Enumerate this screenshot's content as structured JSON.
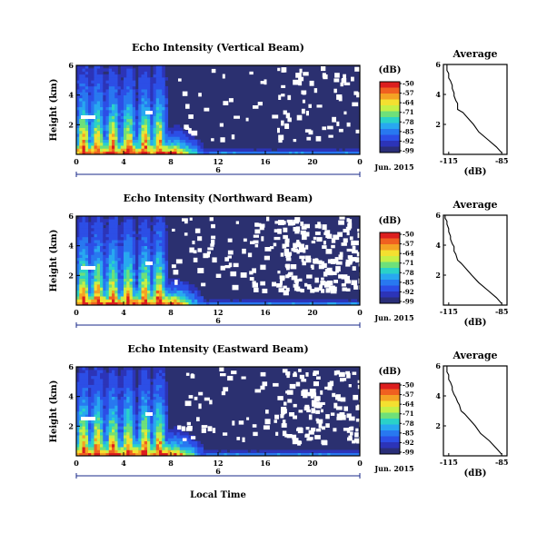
{
  "figure": {
    "xlabel": "Local Time",
    "date_label": "Jun. 2015",
    "day_label": "6",
    "colorbar_unit": "(dB)",
    "colorbar_ticks": [
      "-50",
      "-57",
      "-64",
      "-71",
      "-78",
      "-85",
      "-92",
      "-99"
    ],
    "colorbar_colors": [
      "#dc1e1e",
      "#f06020",
      "#f4a224",
      "#f4e030",
      "#c6f046",
      "#6ee07a",
      "#2ad2c8",
      "#28a8f0",
      "#2878f0",
      "#2c4ee6",
      "#2c34b8",
      "#2a2e78"
    ],
    "background_color": "#2b3070"
  },
  "chart_data": [
    {
      "type": "heatmap",
      "title": "Echo Intensity (Vertical Beam)",
      "ylabel": "Height (km)",
      "x_ticks": [
        "0",
        "4",
        "8",
        "12",
        "16",
        "20",
        "0"
      ],
      "xlim": [
        0,
        24
      ],
      "y_ticks": [
        "2",
        "4",
        "6"
      ],
      "ylim": [
        0,
        6
      ],
      "zlim": [
        -99,
        -50
      ],
      "zunit": "dB",
      "gap_density": 0.35,
      "profile": {
        "type": "line",
        "title": "Average",
        "xlabel": "(dB)",
        "x_ticks": [
          "-115",
          "-85"
        ],
        "xlim": [
          -118,
          -82
        ],
        "y_ticks": [
          "2",
          "4",
          "6"
        ],
        "ylim": [
          0,
          6
        ],
        "x": [
          -85,
          -88,
          -93,
          -98,
          -101,
          -104,
          -107,
          -110,
          -110,
          -111,
          -112,
          -112,
          -113,
          -113,
          -114,
          -115,
          -115,
          -116,
          -116,
          -116
        ],
        "y": [
          0.1,
          0.5,
          1.0,
          1.5,
          2.0,
          2.4,
          2.8,
          3.0,
          3.4,
          3.6,
          3.9,
          4.1,
          4.4,
          4.6,
          4.9,
          5.1,
          5.4,
          5.6,
          5.8,
          6.0
        ]
      }
    },
    {
      "type": "heatmap",
      "title": "Echo Intensity (Northward Beam)",
      "ylabel": "Height (km)",
      "x_ticks": [
        "0",
        "4",
        "8",
        "12",
        "16",
        "20",
        "0"
      ],
      "xlim": [
        0,
        24
      ],
      "y_ticks": [
        "2",
        "4",
        "6"
      ],
      "ylim": [
        0,
        6
      ],
      "zlim": [
        -99,
        -50
      ],
      "zunit": "dB",
      "gap_density": 1.0,
      "profile": {
        "type": "line",
        "title": "Average",
        "xlabel": "(dB)",
        "x_ticks": [
          "-115",
          "-85"
        ],
        "xlim": [
          -118,
          -82
        ],
        "y_ticks": [
          "2",
          "4",
          "6"
        ],
        "ylim": [
          0,
          6
        ],
        "x": [
          -85,
          -88,
          -93,
          -98,
          -102,
          -105,
          -108,
          -110,
          -111,
          -112,
          -112,
          -113,
          -114,
          -114,
          -115,
          -115,
          -116,
          -116,
          -117,
          -117
        ],
        "y": [
          0.1,
          0.5,
          1.0,
          1.5,
          2.0,
          2.4,
          2.8,
          3.0,
          3.4,
          3.6,
          3.9,
          4.1,
          4.4,
          4.6,
          4.9,
          5.1,
          5.4,
          5.6,
          5.8,
          6.0
        ]
      }
    },
    {
      "type": "heatmap",
      "title": "Echo Intensity (Eastward Beam)",
      "ylabel": "Height (km)",
      "x_ticks": [
        "0",
        "4",
        "8",
        "12",
        "16",
        "20",
        "0"
      ],
      "xlim": [
        0,
        24
      ],
      "y_ticks": [
        "2",
        "4",
        "6"
      ],
      "ylim": [
        0,
        6
      ],
      "zlim": [
        -99,
        -50
      ],
      "zunit": "dB",
      "gap_density": 0.7,
      "profile": {
        "type": "line",
        "title": "Average",
        "xlabel": "(dB)",
        "x_ticks": [
          "-115",
          "-85"
        ],
        "xlim": [
          -118,
          -82
        ],
        "y_ticks": [
          "2",
          "4",
          "6"
        ],
        "ylim": [
          0,
          6
        ],
        "x": [
          -85,
          -88,
          -92,
          -97,
          -100,
          -103,
          -106,
          -108,
          -109,
          -110,
          -111,
          -112,
          -113,
          -113,
          -114,
          -115,
          -115,
          -116,
          -116,
          -116
        ],
        "y": [
          0.1,
          0.5,
          1.0,
          1.5,
          2.0,
          2.4,
          2.8,
          3.0,
          3.4,
          3.6,
          3.9,
          4.1,
          4.4,
          4.6,
          4.9,
          5.1,
          5.4,
          5.6,
          5.8,
          6.0
        ]
      }
    }
  ]
}
